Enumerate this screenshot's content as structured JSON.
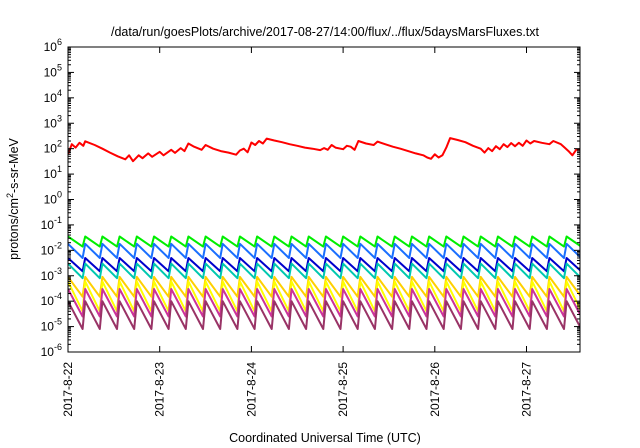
{
  "chart_data": {
    "type": "line",
    "title": "/data/run/goesPlots/archive/2017-08-27/14:00/flux/../flux/5daysMarsFluxes.txt",
    "xlabel": "Coordinated Universal Time (UTC)",
    "ylabel_parts": {
      "main": "protons/cm",
      "sup": "2",
      "rest": "-s-sr-MeV"
    },
    "y_scale": "log",
    "ylim": [
      1e-06,
      1000000.0
    ],
    "y_ticks": [
      {
        "base": "10",
        "exp": "-6",
        "value": 1e-06
      },
      {
        "base": "10",
        "exp": "-5",
        "value": 1e-05
      },
      {
        "base": "10",
        "exp": "-4",
        "value": 0.0001
      },
      {
        "base": "10",
        "exp": "-3",
        "value": 0.001
      },
      {
        "base": "10",
        "exp": "-2",
        "value": 0.01
      },
      {
        "base": "10",
        "exp": "-1",
        "value": 0.1
      },
      {
        "base": "10",
        "exp": "0",
        "value": 1
      },
      {
        "base": "10",
        "exp": "1",
        "value": 10
      },
      {
        "base": "10",
        "exp": "2",
        "value": 100
      },
      {
        "base": "10",
        "exp": "3",
        "value": 1000
      },
      {
        "base": "10",
        "exp": "4",
        "value": 10000
      },
      {
        "base": "10",
        "exp": "5",
        "value": 100000
      },
      {
        "base": "10",
        "exp": "6",
        "value": 1000000
      }
    ],
    "x_start": "2017-08-22 00:00",
    "x_end": "2017-08-27 14:00",
    "x_ticks": [
      {
        "label": "2017-8-22",
        "at": "2017-08-22 00:00"
      },
      {
        "label": "2017-8-23",
        "at": "2017-08-23 00:00"
      },
      {
        "label": "2017-8-24",
        "at": "2017-08-24 00:00"
      },
      {
        "label": "2017-8-25",
        "at": "2017-08-25 00:00"
      },
      {
        "label": "2017-8-26",
        "at": "2017-08-26 00:00"
      },
      {
        "label": "2017-8-27",
        "at": "2017-08-27 00:00"
      }
    ],
    "grid": false,
    "legend": "none",
    "series": [
      {
        "color": "#ff0000",
        "points": [
          [
            "2017-08-22 00:00",
            60
          ],
          [
            "2017-08-22 01:00",
            150
          ],
          [
            "2017-08-22 02:00",
            110
          ],
          [
            "2017-08-22 03:00",
            170
          ],
          [
            "2017-08-22 04:00",
            130
          ],
          [
            "2017-08-22 04:30",
            195
          ],
          [
            "2017-08-22 07:00",
            140
          ],
          [
            "2017-08-22 09:00",
            100
          ],
          [
            "2017-08-22 11:00",
            70
          ],
          [
            "2017-08-22 13:00",
            50
          ],
          [
            "2017-08-22 15:00",
            38
          ],
          [
            "2017-08-22 16:00",
            55
          ],
          [
            "2017-08-22 17:00",
            32
          ],
          [
            "2017-08-22 18:30",
            55
          ],
          [
            "2017-08-22 19:30",
            42
          ],
          [
            "2017-08-22 21:00",
            65
          ],
          [
            "2017-08-22 22:00",
            48
          ],
          [
            "2017-08-23 00:00",
            75
          ],
          [
            "2017-08-23 01:00",
            55
          ],
          [
            "2017-08-23 03:00",
            90
          ],
          [
            "2017-08-23 04:00",
            68
          ],
          [
            "2017-08-23 05:30",
            105
          ],
          [
            "2017-08-23 06:30",
            80
          ],
          [
            "2017-08-23 07:30",
            160
          ],
          [
            "2017-08-23 09:00",
            120
          ],
          [
            "2017-08-23 11:00",
            90
          ],
          [
            "2017-08-23 12:00",
            140
          ],
          [
            "2017-08-23 14:00",
            100
          ],
          [
            "2017-08-23 16:00",
            80
          ],
          [
            "2017-08-23 18:00",
            70
          ],
          [
            "2017-08-23 20:00",
            58
          ],
          [
            "2017-08-23 21:00",
            85
          ],
          [
            "2017-08-23 22:00",
            100
          ],
          [
            "2017-08-23 23:00",
            72
          ],
          [
            "2017-08-24 00:00",
            175
          ],
          [
            "2017-08-24 01:00",
            140
          ],
          [
            "2017-08-24 02:00",
            200
          ],
          [
            "2017-08-24 03:00",
            160
          ],
          [
            "2017-08-24 04:00",
            250
          ],
          [
            "2017-08-24 06:00",
            210
          ],
          [
            "2017-08-24 08:00",
            180
          ],
          [
            "2017-08-24 10:00",
            150
          ],
          [
            "2017-08-24 12:00",
            130
          ],
          [
            "2017-08-24 14:00",
            110
          ],
          [
            "2017-08-24 16:00",
            100
          ],
          [
            "2017-08-24 18:00",
            88
          ],
          [
            "2017-08-24 19:00",
            105
          ],
          [
            "2017-08-24 20:00",
            90
          ],
          [
            "2017-08-24 21:00",
            140
          ],
          [
            "2017-08-24 22:00",
            110
          ],
          [
            "2017-08-25 00:00",
            95
          ],
          [
            "2017-08-25 01:00",
            130
          ],
          [
            "2017-08-25 02:00",
            120
          ],
          [
            "2017-08-25 03:00",
            90
          ],
          [
            "2017-08-25 04:00",
            200
          ],
          [
            "2017-08-25 06:00",
            160
          ],
          [
            "2017-08-25 08:00",
            140
          ],
          [
            "2017-08-25 09:00",
            190
          ],
          [
            "2017-08-25 11:00",
            150
          ],
          [
            "2017-08-25 13:00",
            120
          ],
          [
            "2017-08-25 15:00",
            100
          ],
          [
            "2017-08-25 17:00",
            80
          ],
          [
            "2017-08-25 19:00",
            65
          ],
          [
            "2017-08-25 21:00",
            55
          ],
          [
            "2017-08-25 22:00",
            45
          ],
          [
            "2017-08-25 23:00",
            40
          ],
          [
            "2017-08-26 00:00",
            60
          ],
          [
            "2017-08-26 01:00",
            45
          ],
          [
            "2017-08-26 02:00",
            55
          ],
          [
            "2017-08-26 03:00",
            110
          ],
          [
            "2017-08-26 04:00",
            260
          ],
          [
            "2017-08-26 06:00",
            220
          ],
          [
            "2017-08-26 08:00",
            180
          ],
          [
            "2017-08-26 10:00",
            130
          ],
          [
            "2017-08-26 12:00",
            100
          ],
          [
            "2017-08-26 13:00",
            70
          ],
          [
            "2017-08-26 14:00",
            105
          ],
          [
            "2017-08-26 15:00",
            80
          ],
          [
            "2017-08-26 16:00",
            125
          ],
          [
            "2017-08-26 17:00",
            95
          ],
          [
            "2017-08-26 18:00",
            150
          ],
          [
            "2017-08-26 19:00",
            115
          ],
          [
            "2017-08-26 20:00",
            165
          ],
          [
            "2017-08-26 21:00",
            125
          ],
          [
            "2017-08-26 22:00",
            170
          ],
          [
            "2017-08-26 23:00",
            130
          ],
          [
            "2017-08-27 00:00",
            210
          ],
          [
            "2017-08-27 01:00",
            160
          ],
          [
            "2017-08-27 02:00",
            200
          ],
          [
            "2017-08-27 04:00",
            170
          ],
          [
            "2017-08-27 06:00",
            150
          ],
          [
            "2017-08-27 07:00",
            200
          ],
          [
            "2017-08-27 09:00",
            150
          ],
          [
            "2017-08-27 10:00",
            110
          ],
          [
            "2017-08-27 11:00",
            80
          ],
          [
            "2017-08-27 12:00",
            55
          ],
          [
            "2017-08-27 13:00",
            90
          ],
          [
            "2017-08-27 14:00",
            95
          ]
        ]
      },
      {
        "color": "#00ee00",
        "sawtooth": {
          "period_hours": 4.5,
          "low": 0.014,
          "high": 0.035
        }
      },
      {
        "color": "#1a6fff",
        "sawtooth": {
          "period_hours": 4.5,
          "low": 0.005,
          "high": 0.018
        }
      },
      {
        "color": "#0000cc",
        "sawtooth": {
          "period_hours": 4.5,
          "low": 0.0015,
          "high": 0.005
        }
      },
      {
        "color": "#00c8b0",
        "sawtooth": {
          "period_hours": 4.5,
          "low": 0.0008,
          "high": 0.003
        }
      },
      {
        "color": "#ffd000",
        "sawtooth": {
          "period_hours": 4.5,
          "low": 0.00015,
          "high": 0.0009
        }
      },
      {
        "color": "#ffff00",
        "sawtooth": {
          "period_hours": 4.5,
          "low": 4e-05,
          "high": 0.0006
        }
      },
      {
        "color": "#cc3399",
        "sawtooth": {
          "period_hours": 4.5,
          "low": 2.5e-05,
          "high": 0.0003
        }
      },
      {
        "color": "#993366",
        "sawtooth": {
          "period_hours": 4.5,
          "low": 8e-06,
          "high": 0.0001
        }
      }
    ]
  }
}
